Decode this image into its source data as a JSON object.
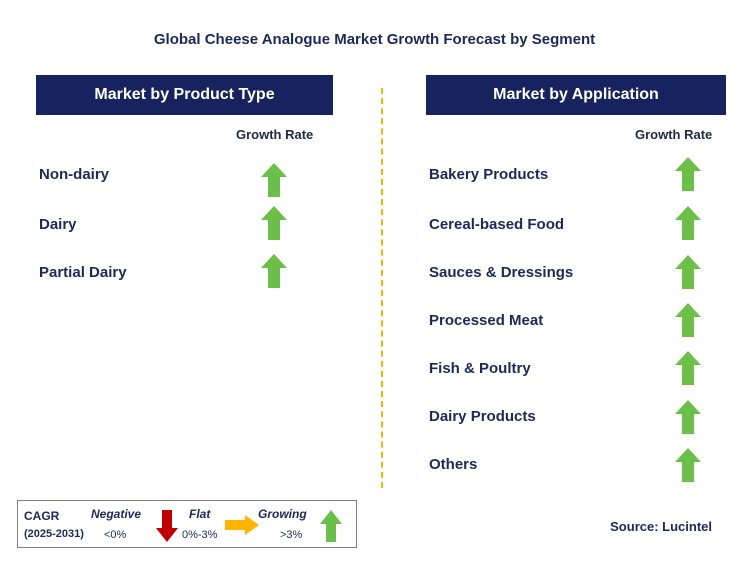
{
  "title": "Global Cheese Analogue Market Growth Forecast by Segment",
  "left_panel": {
    "header": "Market by Product Type",
    "column_label": "Growth Rate",
    "rows": [
      {
        "label": "Non-dairy",
        "trend": "growing"
      },
      {
        "label": "Dairy",
        "trend": "growing"
      },
      {
        "label": "Partial Dairy",
        "trend": "growing"
      }
    ]
  },
  "right_panel": {
    "header": "Market by Application",
    "column_label": "Growth Rate",
    "rows": [
      {
        "label": "Bakery Products",
        "trend": "growing"
      },
      {
        "label": "Cereal-based Food",
        "trend": "growing"
      },
      {
        "label": "Sauces & Dressings",
        "trend": "growing"
      },
      {
        "label": "Processed Meat",
        "trend": "growing"
      },
      {
        "label": "Fish & Poultry",
        "trend": "growing"
      },
      {
        "label": "Dairy Products",
        "trend": "growing"
      },
      {
        "label": "Others",
        "trend": "growing"
      }
    ]
  },
  "legend": {
    "cagr_label": "CAGR",
    "period": "(2025-2031)",
    "negative": {
      "name": "Negative",
      "range": "<0%",
      "icon": "red-down-arrow-icon",
      "color": "#c00000"
    },
    "flat": {
      "name": "Flat",
      "range": "0%-3%",
      "icon": "orange-right-arrow-icon",
      "color": "#ffb400"
    },
    "growing": {
      "name": "Growing",
      "range": ">3%",
      "icon": "green-up-arrow-icon",
      "color": "#6cc04a"
    }
  },
  "source": "Source: Lucintel",
  "colors": {
    "header_bg": "#17235e",
    "divider": "#f2b400",
    "up_arrow": "#6cc04a"
  }
}
